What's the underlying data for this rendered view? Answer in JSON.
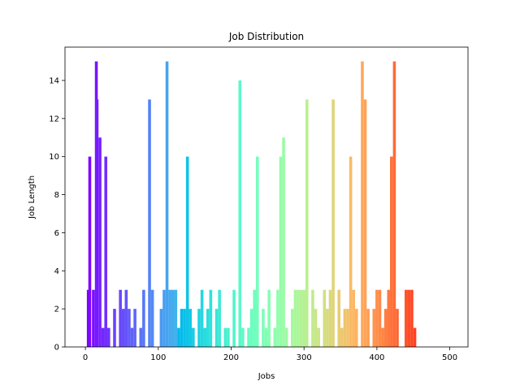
{
  "chart_data": {
    "type": "bar",
    "title": "Job Distribution",
    "xlabel": "Jobs",
    "ylabel": "Job Length",
    "xlim": [
      -28,
      525
    ],
    "ylim": [
      0,
      15.75
    ],
    "xticks": [
      0,
      100,
      200,
      300,
      400,
      500
    ],
    "yticks": [
      0,
      2,
      4,
      6,
      8,
      10,
      12,
      14
    ],
    "xtick_labels": [
      "0",
      "100",
      "200",
      "300",
      "400",
      "500"
    ],
    "ytick_labels": [
      "0",
      "2",
      "4",
      "6",
      "8",
      "10",
      "12",
      "14"
    ],
    "bar_width": 4,
    "colormap": "rainbow",
    "grid": false,
    "x": [
      4,
      6,
      11,
      15,
      16,
      20,
      24,
      28,
      32,
      36,
      40,
      48,
      52,
      56,
      60,
      64,
      68,
      72,
      76,
      80,
      84,
      88,
      92,
      96,
      100,
      104,
      108,
      112,
      116,
      120,
      124,
      128,
      132,
      136,
      140,
      144,
      148,
      152,
      156,
      160,
      164,
      168,
      172,
      176,
      180,
      184,
      188,
      192,
      196,
      200,
      204,
      208,
      212,
      216,
      220,
      224,
      228,
      232,
      236,
      240,
      244,
      248,
      252,
      256,
      260,
      264,
      268,
      272,
      276,
      280,
      284,
      288,
      292,
      296,
      300,
      304,
      308,
      312,
      316,
      320,
      324,
      328,
      332,
      336,
      340,
      344,
      348,
      352,
      356,
      360,
      364,
      368,
      372,
      376,
      380,
      384,
      388,
      392,
      396,
      400,
      404,
      408,
      412,
      416,
      420,
      424,
      428,
      432,
      436,
      440,
      444,
      448,
      452,
      456,
      460,
      464,
      468,
      472,
      476,
      480,
      484,
      488,
      492
    ],
    "values": [
      3,
      10,
      3,
      15,
      13,
      11,
      1,
      10,
      1,
      0,
      2,
      3,
      2,
      3,
      2,
      1,
      2,
      0,
      1,
      3,
      0,
      13,
      3,
      0,
      0,
      2,
      3,
      15,
      3,
      3,
      3,
      1,
      2,
      2,
      10,
      2,
      1,
      0,
      2,
      3,
      1,
      2,
      3,
      0,
      2,
      3,
      0,
      1,
      1,
      0,
      3,
      0,
      14,
      1,
      0,
      1,
      2,
      3,
      10,
      0,
      2,
      1,
      3,
      0,
      1,
      3,
      10,
      11,
      1,
      0,
      2,
      3,
      3,
      3,
      3,
      13,
      0,
      3,
      2,
      1,
      0,
      3,
      2,
      3,
      13,
      0,
      3,
      1,
      2,
      2,
      10,
      3,
      2,
      0,
      15,
      13,
      2,
      0,
      2,
      3,
      3,
      1,
      2,
      3,
      10,
      15,
      2,
      0,
      0,
      3,
      3,
      3,
      1,
      0,
      0,
      0,
      0,
      0,
      0,
      0,
      0,
      0,
      0
    ]
  }
}
